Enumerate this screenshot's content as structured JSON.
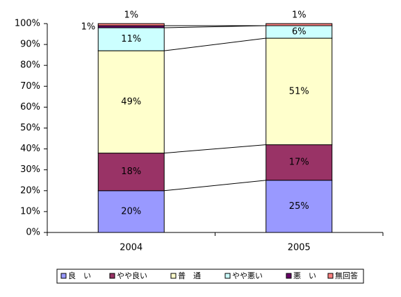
{
  "chart_data": {
    "type": "stacked-bar",
    "categories": [
      "2004",
      "2005"
    ],
    "series": [
      {
        "name": "良　い",
        "color": "#9999ff",
        "label_color": "#000000",
        "values": [
          20,
          25
        ],
        "value_labels": [
          "20%",
          "25%"
        ]
      },
      {
        "name": "やや良い",
        "color": "#993366",
        "label_color": "#ffffff",
        "values": [
          18,
          17
        ],
        "value_labels": [
          "18%",
          "17%"
        ]
      },
      {
        "name": "普　通",
        "color": "#ffffcc",
        "label_color": "#000000",
        "values": [
          49,
          51
        ],
        "value_labels": [
          "49%",
          "51%"
        ]
      },
      {
        "name": "やや悪い",
        "color": "#ccffff",
        "label_color": "#000000",
        "values": [
          11,
          6
        ],
        "value_labels": [
          "11%",
          "6%"
        ]
      },
      {
        "name": "悪　い",
        "color": "#660066",
        "label_color": "#000000",
        "values": [
          1,
          0
        ],
        "value_labels": [
          "1%",
          null
        ]
      },
      {
        "name": "無回答",
        "color": "#ff8080",
        "label_color": "#000000",
        "values": [
          1,
          1
        ],
        "value_labels": [
          "1%",
          "1%"
        ]
      }
    ],
    "ylim": [
      0,
      100
    ],
    "yticks": [
      {
        "value": 0,
        "label": "0%"
      },
      {
        "value": 10,
        "label": "10%"
      },
      {
        "value": 20,
        "label": "20%"
      },
      {
        "value": 30,
        "label": "30%"
      },
      {
        "value": 40,
        "label": "40%"
      },
      {
        "value": 50,
        "label": "50%"
      },
      {
        "value": 60,
        "label": "60%"
      },
      {
        "value": 70,
        "label": "70%"
      },
      {
        "value": 80,
        "label": "80%"
      },
      {
        "value": 90,
        "label": "90%"
      },
      {
        "value": 100,
        "label": "100%"
      }
    ],
    "series_lines": true,
    "legend": "bottom"
  }
}
